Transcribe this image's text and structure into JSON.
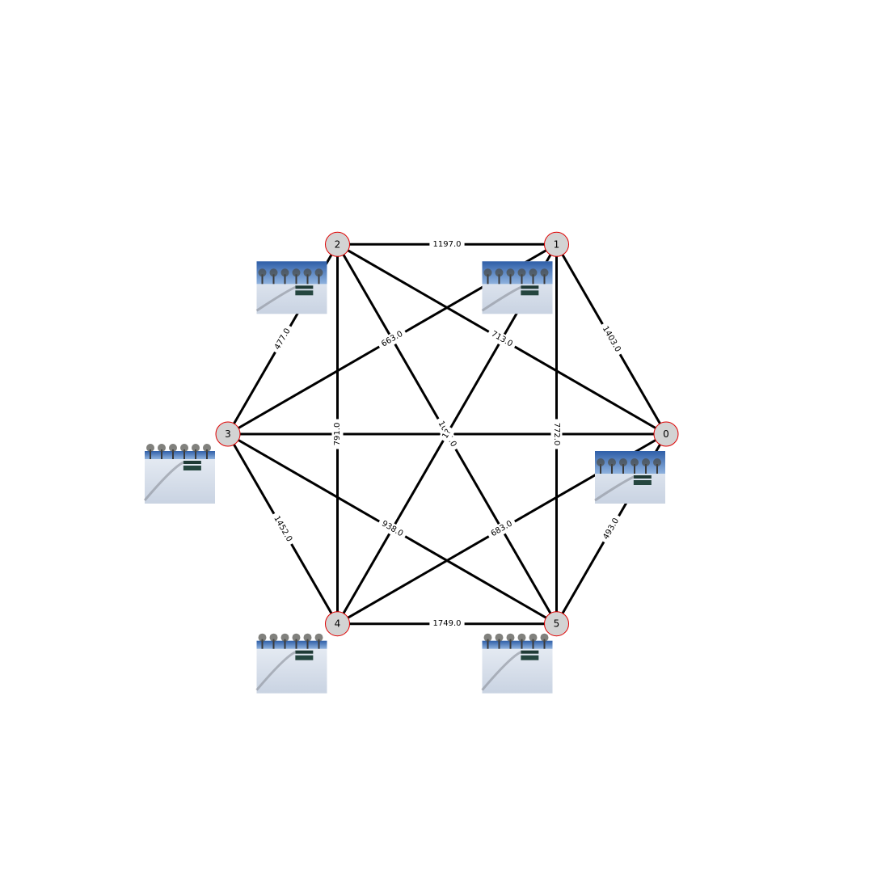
{
  "graph": {
    "nodes": [
      {
        "id": "0",
        "label": "0",
        "image": "snow-path-bench-trees-photo"
      },
      {
        "id": "1",
        "label": "1",
        "image": "snow-path-bench-trees-photo"
      },
      {
        "id": "2",
        "label": "2",
        "image": "snow-river-trees-photo"
      },
      {
        "id": "3",
        "label": "3",
        "image": "snow-benches-photo"
      },
      {
        "id": "4",
        "label": "4",
        "image": "snow-path-bench-photo"
      },
      {
        "id": "5",
        "label": "5",
        "image": "snow-path-curve-photo"
      }
    ],
    "edges": [
      {
        "source": "2",
        "target": "1",
        "weight": "1197.0"
      },
      {
        "source": "1",
        "target": "0",
        "weight": "1403.0"
      },
      {
        "source": "2",
        "target": "3",
        "weight": "477.0"
      },
      {
        "source": "3",
        "target": "1",
        "weight": "663.0"
      },
      {
        "source": "2",
        "target": "0",
        "weight": "713.0"
      },
      {
        "source": "2",
        "target": "4",
        "weight": "791.0"
      },
      {
        "source": "1",
        "target": "5",
        "weight": "772.0"
      },
      {
        "source": "3",
        "target": "0",
        "weight": ""
      },
      {
        "source": "2",
        "target": "5",
        "weight": "1054.0"
      },
      {
        "source": "1",
        "target": "4",
        "weight": "1?"
      },
      {
        "source": "3",
        "target": "4",
        "weight": "1452.0"
      },
      {
        "source": "3",
        "target": "5",
        "weight": "938.0"
      },
      {
        "source": "4",
        "target": "0",
        "weight": "683.0"
      },
      {
        "source": "5",
        "target": "0",
        "weight": "493.0"
      },
      {
        "source": "4",
        "target": "5",
        "weight": "1749.0"
      }
    ]
  }
}
